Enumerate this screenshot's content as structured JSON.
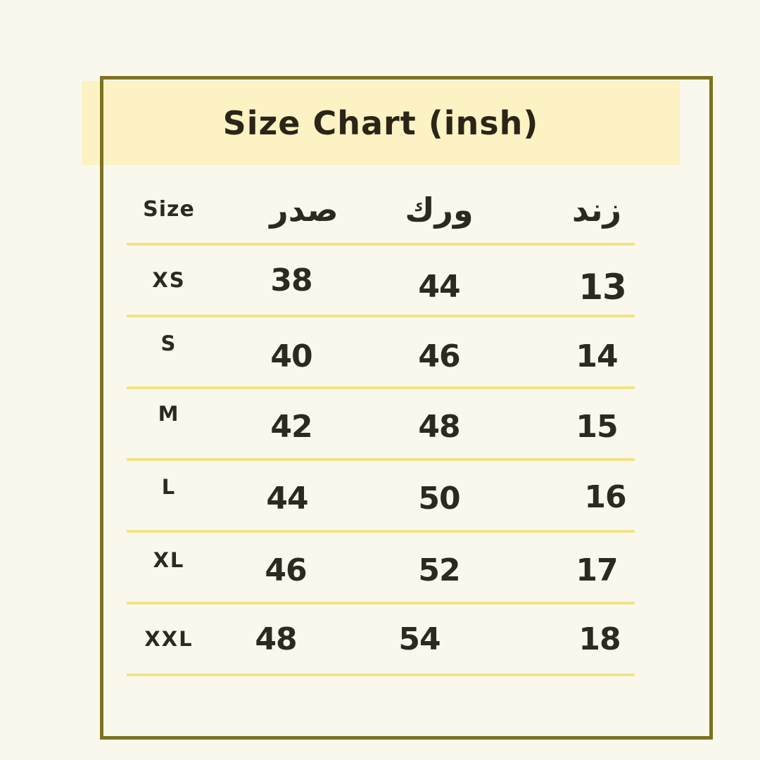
{
  "chart_data": {
    "type": "table",
    "title": "Size Chart (insh)",
    "columns": [
      "Size",
      "صدر",
      "ورك",
      "زند"
    ],
    "rows": [
      [
        "XS",
        "38",
        "44",
        "13"
      ],
      [
        "S",
        "40",
        "46",
        "14"
      ],
      [
        "M",
        "42",
        "48",
        "15"
      ],
      [
        "L",
        "44",
        "50",
        "16"
      ],
      [
        "XL",
        "46",
        "52",
        "17"
      ],
      [
        "XXL",
        "48",
        "54",
        "18"
      ]
    ]
  },
  "colors": {
    "background": "#faf8ed",
    "title_highlight": "#fcf2c4",
    "frame_border": "#7c7322",
    "row_separator": "#f0e287",
    "text": "#2b2a1e"
  }
}
